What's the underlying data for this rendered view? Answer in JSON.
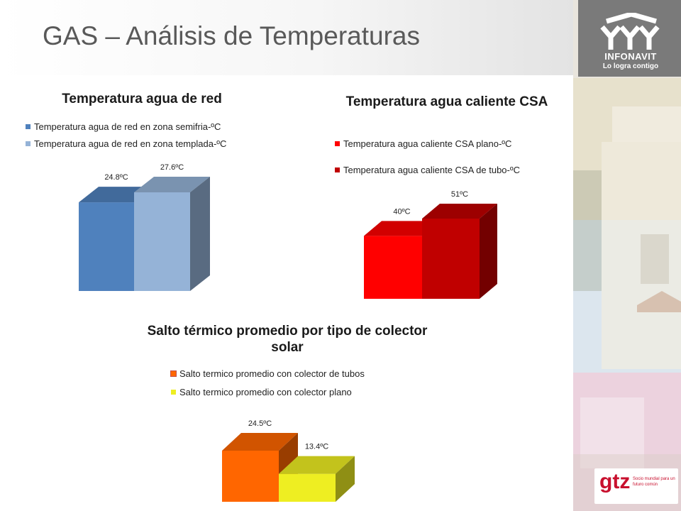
{
  "page": {
    "title": "GAS – Análisis de Temperaturas"
  },
  "brand": {
    "logo_name": "INFONAVIT",
    "logo_slogan": "Lo logra contigo",
    "partner_logo": "gtz",
    "partner_tagline": "Socio mundial para un futuro común"
  },
  "colors": {
    "network_semifria": "#4f81bd",
    "network_templada": "#95b3d7",
    "csa_plano": "#ff0000",
    "csa_tubo": "#c00000",
    "salto_tubos": "#ff6600",
    "salto_plano": "#eeee22"
  },
  "chart_data": [
    {
      "type": "bar",
      "title": "Temperatura agua de red",
      "unit": "ºC",
      "series": [
        {
          "name": "Temperatura agua de red en zona semifria-ºC",
          "value": 24.8,
          "label": "24.8ºC"
        },
        {
          "name": "Temperatura agua de red en zona templada-ºC",
          "value": 27.6,
          "label": "27.6ºC"
        }
      ]
    },
    {
      "type": "bar",
      "title": "Temperatura agua caliente CSA",
      "unit": "ºC",
      "series": [
        {
          "name": "Temperatura agua caliente CSA plano-ºC",
          "value": 40,
          "label": "40ºC"
        },
        {
          "name": "Temperatura agua caliente CSA de tubo-ºC",
          "value": 51,
          "label": "51ºC"
        }
      ]
    },
    {
      "type": "bar",
      "title": "Salto térmico promedio por tipo de colector solar",
      "unit": "ºC",
      "series": [
        {
          "name": "Salto termico promedio con colector de tubos",
          "value": 24.5,
          "label": "24.5ºC"
        },
        {
          "name": "Salto termico promedio con colector plano",
          "value": 13.4,
          "label": "13.4ºC"
        }
      ]
    }
  ]
}
